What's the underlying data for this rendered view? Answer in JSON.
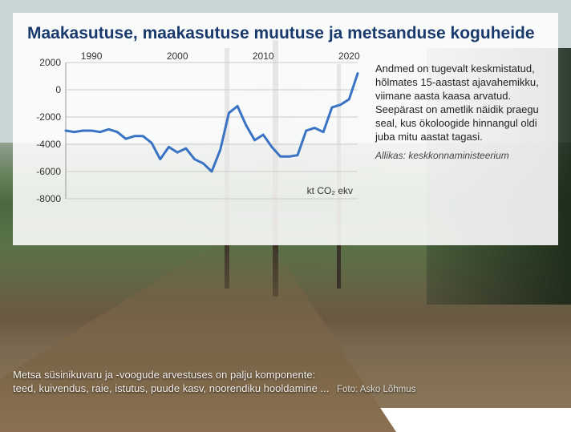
{
  "panel": {
    "title": "Maakasutuse, maakasutuse muutuse ja metsanduse koguheide",
    "side_text": "Andmed on tugevalt keskmistatud, hõlmates 15-aastast ajavahemikku, viimane aasta kaasa arvatud. Seepärast on ametlik näidik praegu seal, kus ökoloogide hinnangul oldi juba mitu aastat tagasi.",
    "source": "Allikas: keskkonnaministeerium"
  },
  "chart": {
    "type": "line",
    "title_fontsize": 21,
    "title_color": "#1a3a6e",
    "label_fontsize": 12,
    "background_color": "rgba(255,255,255,0.88)",
    "grid_color": "#cccccc",
    "axis_color": "#999999",
    "line_color": "#3b73c4",
    "line_width": 3,
    "xlim": [
      1987,
      2021
    ],
    "ylim": [
      -8000,
      2000
    ],
    "xticks": [
      1990,
      2000,
      2010,
      2020
    ],
    "yticks": [
      2000,
      0,
      -2000,
      -4000,
      -6000,
      -8000
    ],
    "unit_label": "kt CO₂  ekv",
    "series": {
      "x": [
        1987,
        1988,
        1989,
        1990,
        1991,
        1992,
        1993,
        1994,
        1995,
        1996,
        1997,
        1998,
        1999,
        2000,
        2001,
        2002,
        2003,
        2004,
        2005,
        2006,
        2007,
        2008,
        2009,
        2010,
        2011,
        2012,
        2013,
        2014,
        2015,
        2016,
        2017,
        2018,
        2019,
        2020,
        2021
      ],
      "y": [
        -3000,
        -3100,
        -3000,
        -3000,
        -3100,
        -2900,
        -3100,
        -3600,
        -3400,
        -3400,
        -3900,
        -5100,
        -4200,
        -4600,
        -4300,
        -5100,
        -5400,
        -6000,
        -4400,
        -1700,
        -1200,
        -2600,
        -3700,
        -3300,
        -4200,
        -4900,
        -4900,
        -4800,
        -3000,
        -2800,
        -3100,
        -1300,
        -1100,
        -700,
        1200
      ]
    }
  },
  "caption": {
    "line1": "Metsa süsinikuvaru ja -voogude arvestuses on palju komponente:",
    "line2": "teed, kuivendus, raie, istutus, puude kasv, noorendiku hooldamine ...",
    "credit": "Foto: Asko Lõhmus"
  }
}
